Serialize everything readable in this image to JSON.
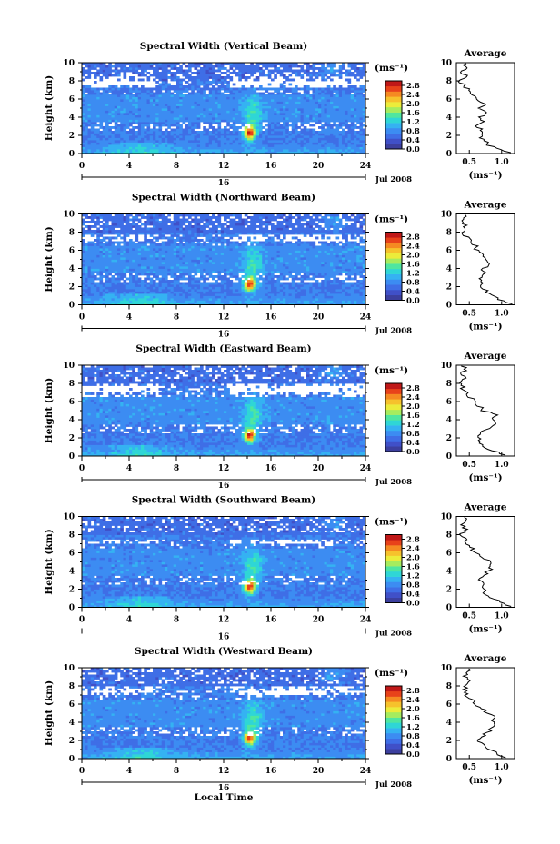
{
  "figure": {
    "xlabel": "Local Time",
    "day_label": "16",
    "month_label": "Jul 2008",
    "colorbar_unit": "(ms⁻¹)",
    "average_title": "Average",
    "average_xlabel": "(ms⁻¹)"
  },
  "colors": {
    "colormap": [
      "#3c3f9e",
      "#4050c8",
      "#3f6ee6",
      "#3c8cf2",
      "#35b2f2",
      "#2fd6d6",
      "#4fe6a0",
      "#a6ec5e",
      "#ecec3a",
      "#f6c22c",
      "#f58a22",
      "#e8421a",
      "#c01818"
    ],
    "missing": "#ffffff"
  },
  "chart_data": [
    {
      "type": "heatmap",
      "title": "Spectral Width (Vertical Beam)",
      "ylabel": "Height (km)",
      "xlim": [
        0,
        24
      ],
      "ylim": [
        0,
        10
      ],
      "xticks": [
        0,
        4,
        8,
        12,
        16,
        20,
        24
      ],
      "yticks": [
        0,
        2,
        4,
        6,
        8,
        10
      ],
      "colorbar": {
        "label": "(ms⁻¹)",
        "range": [
          0,
          3.0
        ],
        "ticks": [
          0.0,
          0.4,
          0.8,
          1.2,
          1.6,
          2.0,
          2.4,
          2.8
        ]
      },
      "value_unit": "m/s",
      "gaps_km": [
        [
          7.3,
          8.4
        ]
      ],
      "average": {
        "title": "Average",
        "xlabel": "(ms⁻¹)",
        "xlim": [
          0.3,
          1.2
        ],
        "xticks": [
          0.5,
          1.0
        ],
        "height_km": [
          0.1,
          0.5,
          1.0,
          1.5,
          2.0,
          2.5,
          3.0,
          3.5,
          4.0,
          4.5,
          5.0,
          5.5,
          6.0,
          6.5,
          7.0,
          7.5,
          8.0,
          8.5,
          9.0,
          9.5,
          9.9
        ],
        "width_ms": [
          1.1,
          0.95,
          0.78,
          0.72,
          0.66,
          0.7,
          0.62,
          0.74,
          0.66,
          0.8,
          0.68,
          0.72,
          0.6,
          0.58,
          0.5,
          0.42,
          0.36,
          0.44,
          0.38,
          0.48,
          0.42
        ]
      }
    },
    {
      "type": "heatmap",
      "title": "Spectral Width (Northward Beam)",
      "ylabel": "Height (km)",
      "xlim": [
        0,
        24
      ],
      "ylim": [
        0,
        10
      ],
      "xticks": [
        0,
        4,
        8,
        12,
        16,
        20,
        24
      ],
      "yticks": [
        0,
        2,
        4,
        6,
        8,
        10
      ],
      "colorbar": {
        "label": "(ms⁻¹)",
        "range": [
          0,
          3.0
        ],
        "ticks": [
          0.0,
          0.4,
          0.8,
          1.2,
          1.6,
          2.0,
          2.4,
          2.8
        ]
      },
      "value_unit": "m/s",
      "gaps_km": [
        [
          7.1,
          7.7
        ]
      ],
      "average": {
        "title": "Average",
        "xlabel": "(ms⁻¹)",
        "xlim": [
          0.3,
          1.2
        ],
        "xticks": [
          0.5,
          1.0
        ],
        "height_km": [
          0.1,
          0.5,
          1.0,
          1.5,
          2.0,
          2.5,
          3.0,
          3.5,
          4.0,
          4.5,
          5.0,
          5.5,
          6.0,
          6.5,
          7.0,
          7.5,
          8.0,
          8.5,
          9.0,
          9.5,
          9.9
        ],
        "width_ms": [
          1.12,
          1.0,
          0.84,
          0.76,
          0.7,
          0.72,
          0.66,
          0.78,
          0.7,
          0.82,
          0.74,
          0.76,
          0.62,
          0.6,
          0.54,
          0.44,
          0.4,
          0.46,
          0.4,
          0.44,
          0.4
        ]
      }
    },
    {
      "type": "heatmap",
      "title": "Spectral Width (Eastward Beam)",
      "ylabel": "Height (km)",
      "xlim": [
        0,
        24
      ],
      "ylim": [
        0,
        10
      ],
      "xticks": [
        0,
        4,
        8,
        12,
        16,
        20,
        24
      ],
      "yticks": [
        0,
        2,
        4,
        6,
        8,
        10
      ],
      "colorbar": {
        "label": "(ms⁻¹)",
        "range": [
          0,
          3.0
        ],
        "ticks": [
          0.0,
          0.4,
          0.8,
          1.2,
          1.6,
          2.0,
          2.4,
          2.8
        ]
      },
      "value_unit": "m/s",
      "gaps_km": [
        [
          6.6,
          8.0
        ]
      ],
      "average": {
        "title": "Average",
        "xlabel": "(ms⁻¹)",
        "xlim": [
          0.3,
          1.2
        ],
        "xticks": [
          0.5,
          1.0
        ],
        "height_km": [
          0.1,
          0.5,
          1.0,
          1.5,
          2.0,
          2.5,
          3.0,
          3.5,
          4.0,
          4.5,
          5.0,
          5.5,
          6.0,
          6.5,
          7.0,
          7.5,
          8.0,
          8.5,
          9.0,
          9.5,
          9.9
        ],
        "width_ms": [
          1.05,
          0.9,
          0.74,
          0.68,
          0.64,
          0.7,
          0.76,
          0.92,
          0.86,
          0.96,
          0.72,
          0.66,
          0.58,
          0.5,
          0.46,
          0.4,
          0.38,
          0.42,
          0.38,
          0.44,
          0.4
        ]
      }
    },
    {
      "type": "heatmap",
      "title": "Spectral Width (Southward Beam)",
      "ylabel": "Height (km)",
      "xlim": [
        0,
        24
      ],
      "ylim": [
        0,
        10
      ],
      "xticks": [
        0,
        4,
        8,
        12,
        16,
        20,
        24
      ],
      "yticks": [
        0,
        2,
        4,
        6,
        8,
        10
      ],
      "colorbar": {
        "label": "(ms⁻¹)",
        "range": [
          0,
          3.0
        ],
        "ticks": [
          0.0,
          0.4,
          0.8,
          1.2,
          1.6,
          2.0,
          2.4,
          2.8
        ]
      },
      "value_unit": "m/s",
      "gaps_km": [
        [
          7.0,
          7.6
        ]
      ],
      "average": {
        "title": "Average",
        "xlabel": "(ms⁻¹)",
        "xlim": [
          0.3,
          1.2
        ],
        "xticks": [
          0.5,
          1.0
        ],
        "height_km": [
          0.1,
          0.5,
          1.0,
          1.5,
          2.0,
          2.5,
          3.0,
          3.5,
          4.0,
          4.5,
          5.0,
          5.5,
          6.0,
          6.5,
          7.0,
          7.5,
          8.0,
          8.5,
          9.0,
          9.5,
          9.9
        ],
        "width_ms": [
          1.15,
          1.02,
          0.86,
          0.76,
          0.7,
          0.72,
          0.68,
          0.74,
          0.8,
          0.86,
          0.8,
          0.72,
          0.6,
          0.54,
          0.48,
          0.42,
          0.38,
          0.44,
          0.4,
          0.46,
          0.42
        ]
      }
    },
    {
      "type": "heatmap",
      "title": "Spectral Width (Westward Beam)",
      "ylabel": "Height (km)",
      "xlim": [
        0,
        24
      ],
      "ylim": [
        0,
        10
      ],
      "xticks": [
        0,
        4,
        8,
        12,
        16,
        20,
        24
      ],
      "yticks": [
        0,
        2,
        4,
        6,
        8,
        10
      ],
      "colorbar": {
        "label": "(ms⁻¹)",
        "range": [
          0,
          3.0
        ],
        "ticks": [
          0.0,
          0.4,
          0.8,
          1.2,
          1.6,
          2.0,
          2.4,
          2.8
        ]
      },
      "value_unit": "m/s",
      "gaps_km": [
        [
          6.9,
          7.9
        ]
      ],
      "average": {
        "title": "Average",
        "xlabel": "(ms⁻¹)",
        "xlim": [
          0.3,
          1.2
        ],
        "xticks": [
          0.5,
          1.0
        ],
        "height_km": [
          0.1,
          0.5,
          1.0,
          1.5,
          2.0,
          2.5,
          3.0,
          3.5,
          4.0,
          4.5,
          5.0,
          5.5,
          6.0,
          6.5,
          7.0,
          7.5,
          8.0,
          8.5,
          9.0,
          9.5,
          9.9
        ],
        "width_ms": [
          1.08,
          0.95,
          0.8,
          0.72,
          0.66,
          0.72,
          0.8,
          0.9,
          0.84,
          0.92,
          0.8,
          0.7,
          0.6,
          0.52,
          0.46,
          0.42,
          0.46,
          0.5,
          0.44,
          0.5,
          0.46
        ]
      }
    }
  ]
}
